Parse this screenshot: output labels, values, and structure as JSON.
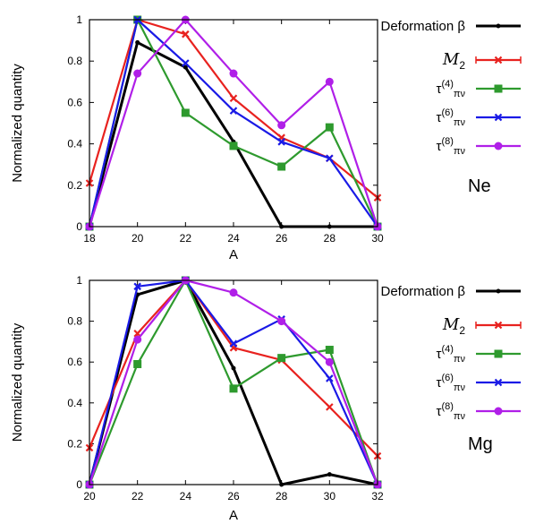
{
  "chart_data": [
    {
      "type": "line",
      "nucleus": "Ne",
      "xlabel": "A",
      "ylabel": "Normalized quantity",
      "xlim": [
        18,
        30
      ],
      "ylim": [
        0,
        1
      ],
      "xticks": [
        18,
        20,
        22,
        24,
        26,
        28,
        30
      ],
      "yticks": [
        0,
        0.2,
        0.4,
        0.6,
        0.8,
        1
      ],
      "ytick_labels": [
        "0",
        "0.2",
        "0.4",
        "0.6",
        "0.8",
        "1"
      ],
      "legend_position": "top-right",
      "series": [
        {
          "name": "Deformation β",
          "color": "#000000",
          "marker": "dot",
          "x": [
            18,
            20,
            22,
            24,
            26,
            28,
            30
          ],
          "values": [
            0.0,
            0.89,
            0.77,
            0.41,
            0.0,
            0.0,
            0.0
          ]
        },
        {
          "name": "M2",
          "color": "#e8221f",
          "marker": "cross",
          "x": [
            18,
            20,
            22,
            24,
            26,
            28,
            30
          ],
          "values": [
            0.21,
            1.0,
            0.93,
            0.62,
            0.43,
            0.33,
            0.14
          ]
        },
        {
          "name": "τ(4)πν",
          "color": "#2e9a2e",
          "marker": "square",
          "x": [
            18,
            20,
            22,
            24,
            26,
            28,
            30
          ],
          "values": [
            0.0,
            1.0,
            0.55,
            0.39,
            0.29,
            0.48,
            0.0
          ]
        },
        {
          "name": "τ(6)πν",
          "color": "#1a1ae6",
          "marker": "cross",
          "x": [
            18,
            20,
            22,
            24,
            26,
            28,
            30
          ],
          "values": [
            0.0,
            1.0,
            0.79,
            0.56,
            0.41,
            0.33,
            0.0
          ]
        },
        {
          "name": "τ(8)πν",
          "color": "#b01fe8",
          "marker": "circle",
          "x": [
            18,
            20,
            22,
            24,
            26,
            28,
            30
          ],
          "values": [
            0.0,
            0.74,
            1.0,
            0.74,
            0.49,
            0.7,
            0.0
          ]
        }
      ]
    },
    {
      "type": "line",
      "nucleus": "Mg",
      "xlabel": "A",
      "ylabel": "Normalized quantity",
      "xlim": [
        20,
        32
      ],
      "ylim": [
        0,
        1
      ],
      "xticks": [
        20,
        22,
        24,
        26,
        28,
        30,
        32
      ],
      "yticks": [
        0,
        0.2,
        0.4,
        0.6,
        0.8,
        1
      ],
      "ytick_labels": [
        "0",
        "0.2",
        "0.4",
        "0.6",
        "0.8",
        "1"
      ],
      "legend_position": "top-right",
      "series": [
        {
          "name": "Deformation β",
          "color": "#000000",
          "marker": "dot",
          "x": [
            20,
            22,
            24,
            26,
            28,
            30,
            32
          ],
          "values": [
            0.0,
            0.93,
            1.0,
            0.57,
            0.0,
            0.05,
            0.0
          ]
        },
        {
          "name": "M2",
          "color": "#e8221f",
          "marker": "cross",
          "x": [
            20,
            22,
            24,
            26,
            28,
            30,
            32
          ],
          "values": [
            0.18,
            0.74,
            1.0,
            0.67,
            0.61,
            0.38,
            0.14
          ]
        },
        {
          "name": "τ(4)πν",
          "color": "#2e9a2e",
          "marker": "square",
          "x": [
            20,
            22,
            24,
            26,
            28,
            30,
            32
          ],
          "values": [
            0.0,
            0.59,
            1.0,
            0.47,
            0.62,
            0.66,
            0.0
          ]
        },
        {
          "name": "τ(6)πν",
          "color": "#1a1ae6",
          "marker": "cross",
          "x": [
            20,
            22,
            24,
            26,
            28,
            30,
            32
          ],
          "values": [
            0.0,
            0.97,
            1.0,
            0.69,
            0.81,
            0.52,
            0.0
          ]
        },
        {
          "name": "τ(8)πν",
          "color": "#b01fe8",
          "marker": "circle",
          "x": [
            20,
            22,
            24,
            26,
            28,
            30,
            32
          ],
          "values": [
            0.0,
            0.71,
            1.0,
            0.94,
            0.8,
            0.6,
            0.0
          ]
        }
      ]
    }
  ]
}
